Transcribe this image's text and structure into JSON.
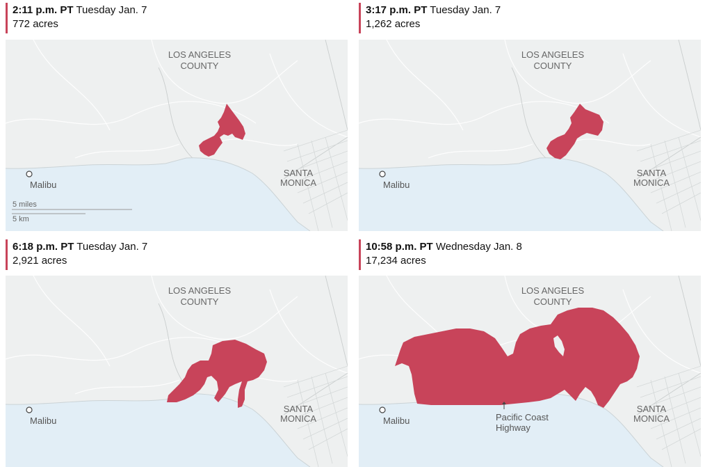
{
  "panels": [
    {
      "time": "2:11 p.m. PT",
      "date": "Tuesday Jan. 7",
      "area": "772 acres"
    },
    {
      "time": "3:17 p.m. PT",
      "date": "Tuesday Jan. 7",
      "area": "1,262 acres"
    },
    {
      "time": "6:18 p.m. PT",
      "date": "Tuesday Jan. 7",
      "area": "2,921 acres"
    },
    {
      "time": "10:58 p.m. PT",
      "date": "Wednesday Jan. 8",
      "area": "17,234 acres"
    }
  ],
  "map_labels": {
    "county_line1": "LOS ANGELES",
    "county_line2": "COUNTY",
    "city_west": "Malibu",
    "city_east_line1": "SANTA",
    "city_east_line2": "MONICA",
    "highway_line1": "Pacific Coast",
    "highway_line2": "Highway"
  },
  "scale": {
    "miles": "5 miles",
    "km": "5 km"
  },
  "colors": {
    "fire": "#c8445a",
    "ocean": "#e2eef6",
    "land": "#eef0f0",
    "accent_bar": "#c8445a"
  }
}
